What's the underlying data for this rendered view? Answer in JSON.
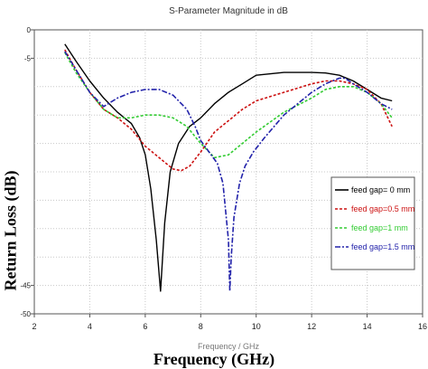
{
  "chart_data": {
    "type": "line",
    "title": "S-Parameter Magnitude in dB",
    "xlabel": "Frequency (GHz)",
    "xlabel_underlay": "Frequency / GHz",
    "ylabel": "Return Loss (dB)",
    "xlim": [
      2,
      16
    ],
    "ylim": [
      -50,
      0
    ],
    "x_ticks": [
      2,
      4,
      6,
      8,
      10,
      12,
      14,
      16
    ],
    "y_ticks": [
      0,
      -5,
      -45,
      -50
    ],
    "y_tick_labels": [
      "0",
      "-5",
      "-45",
      "-50"
    ],
    "grid": true,
    "legend_position": "right-middle",
    "series": [
      {
        "name": "feed gap= 0 mm",
        "color": "#000000",
        "dash": "solid",
        "x": [
          3.1,
          3.5,
          4.0,
          4.5,
          5.0,
          5.5,
          5.8,
          6.0,
          6.2,
          6.4,
          6.55,
          6.7,
          6.9,
          7.2,
          7.6,
          8.0,
          8.5,
          9.0,
          9.5,
          10.0,
          11.0,
          12.0,
          12.5,
          13.0,
          13.5,
          14.0,
          14.5,
          14.9
        ],
        "y": [
          -2.5,
          -5.5,
          -9,
          -12,
          -14.5,
          -16.5,
          -19,
          -22,
          -28,
          -37,
          -46,
          -34,
          -25,
          -20,
          -17,
          -15.5,
          -13,
          -11,
          -9.5,
          -8,
          -7.5,
          -7.5,
          -7.6,
          -8,
          -9,
          -10.5,
          -12,
          -12.5
        ]
      },
      {
        "name": "feed gap=0.5 mm",
        "color": "#cc1111",
        "dash": "short",
        "x": [
          3.1,
          3.5,
          4.0,
          4.5,
          5.0,
          5.5,
          6.0,
          6.5,
          7.0,
          7.3,
          7.6,
          8.0,
          8.5,
          9.0,
          9.5,
          10.0,
          11.0,
          12.0,
          12.5,
          13.0,
          13.5,
          14.0,
          14.5,
          14.9
        ],
        "y": [
          -3.5,
          -7,
          -11,
          -14,
          -15.5,
          -17.5,
          -20.5,
          -22.5,
          -24.5,
          -24.8,
          -24,
          -21.5,
          -18,
          -16,
          -14,
          -12.5,
          -11,
          -9.5,
          -9,
          -9,
          -9.5,
          -10.5,
          -13,
          -17
        ]
      },
      {
        "name": "feed gap=1 mm",
        "color": "#33cc33",
        "dash": "short",
        "x": [
          3.1,
          3.5,
          4.0,
          4.5,
          5.0,
          5.5,
          6.0,
          6.5,
          7.0,
          7.5,
          8.0,
          8.5,
          9.0,
          9.5,
          10.0,
          11.0,
          12.0,
          12.5,
          13.0,
          13.5,
          14.0,
          14.5,
          14.9
        ],
        "y": [
          -4,
          -7.5,
          -11,
          -14,
          -15.5,
          -15.5,
          -15,
          -15,
          -15.5,
          -17,
          -20,
          -22.5,
          -22,
          -20,
          -18,
          -14.5,
          -12,
          -10.5,
          -10,
          -10,
          -11,
          -13,
          -15.5
        ]
      },
      {
        "name": "feed gap=1.5 mm",
        "color": "#2222aa",
        "dash": "dashdot",
        "x": [
          3.1,
          3.5,
          4.0,
          4.5,
          5.0,
          5.5,
          6.0,
          6.5,
          7.0,
          7.5,
          7.8,
          8.0,
          8.3,
          8.6,
          8.8,
          9.0,
          9.05,
          9.1,
          9.2,
          9.4,
          9.6,
          9.9,
          10.3,
          11.0,
          12.0,
          12.5,
          13.0,
          13.2,
          13.5,
          14.0,
          14.5,
          14.9
        ],
        "y": [
          -3.8,
          -7,
          -11,
          -13.5,
          -12,
          -11,
          -10.5,
          -10.5,
          -11.5,
          -14,
          -17,
          -19.5,
          -21.5,
          -23.5,
          -27,
          -37,
          -46,
          -40,
          -33,
          -27,
          -24,
          -21.5,
          -19,
          -15,
          -11,
          -9.5,
          -8.5,
          -8.5,
          -9.5,
          -11,
          -13,
          -14
        ]
      }
    ]
  }
}
